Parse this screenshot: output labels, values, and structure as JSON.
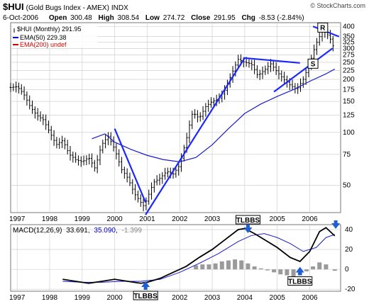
{
  "header": {
    "symbol": "$HUI",
    "name": "(Gold Bugs Index - AMEX)",
    "exchange": "INDX",
    "copyright": "© StockCharts.com",
    "date": "6-Oct-2006",
    "open_label": "Open",
    "open": "300.48",
    "high_label": "High",
    "high": "308.54",
    "low_label": "Low",
    "low": "274.72",
    "close_label": "Close",
    "close": "291.95",
    "chg_label": "Chg",
    "chg": "-8.53 (-2.84%)"
  },
  "legend": [
    {
      "text": "$HUI (Monthly) 291.95",
      "color": "#000000",
      "marker": "bar"
    },
    {
      "text": "EMA(50) 229.38",
      "color": "#0000cc",
      "marker": "line"
    },
    {
      "text": "EMA(200) undef",
      "color": "#cc0000",
      "marker": "line"
    }
  ],
  "macd_legend": {
    "label": "MACD(12,26,9)",
    "macd": "33.691",
    "signal": "35.090",
    "hist": "-1.399",
    "signal_color": "#0000cc",
    "hist_color": "#888888"
  },
  "annotations": {
    "tlbbs": "TLBBS",
    "r_label": "R",
    "s_label": "S"
  },
  "colors": {
    "price": "#000000",
    "ema": "#1c1ccc",
    "trend": "#1c28ff",
    "arrow": "#1f5fd6",
    "grid": "#c8c8c8",
    "hist": "#9a9a9a",
    "signal": "#1c1ccc",
    "macd": "#000000"
  },
  "chart_data": [
    {
      "type": "line",
      "title": "$HUI (Gold Bugs Index - AMEX) INDX",
      "scale": "log",
      "x_range": [
        1996.8,
        2006.95
      ],
      "ylim": [
        35,
        420
      ],
      "y_ticks": [
        50,
        75,
        100,
        125,
        150,
        175,
        200,
        225,
        250,
        275,
        300,
        325,
        350,
        400
      ],
      "x_ticks": [
        "1997",
        "1998",
        "1999",
        "2000",
        "2001",
        "2002",
        "2003",
        "2004",
        "2005",
        "2006"
      ],
      "grid": true,
      "legend_position": "top-left",
      "series": [
        {
          "name": "$HUI (Monthly)",
          "x": [
            1996.8,
            1997.0,
            1997.2,
            1997.4,
            1997.6,
            1997.8,
            1998.0,
            1998.2,
            1998.4,
            1998.6,
            1998.8,
            1999.0,
            1999.2,
            1999.4,
            1999.6,
            1999.8,
            2000.0,
            2000.2,
            2000.4,
            2000.6,
            2000.8,
            2000.9,
            2001.0,
            2001.2,
            2001.4,
            2001.6,
            2001.8,
            2002.0,
            2002.2,
            2002.4,
            2002.6,
            2002.8,
            2003.0,
            2003.2,
            2003.4,
            2003.6,
            2003.8,
            2004.0,
            2004.2,
            2004.4,
            2004.6,
            2004.8,
            2005.0,
            2005.2,
            2005.4,
            2005.6,
            2005.8,
            2006.0,
            2006.2,
            2006.4,
            2006.6,
            2006.77
          ],
          "values": [
            180,
            182,
            165,
            140,
            125,
            118,
            100,
            85,
            90,
            75,
            70,
            68,
            72,
            62,
            85,
            95,
            80,
            62,
            55,
            45,
            40,
            38,
            42,
            52,
            55,
            60,
            58,
            65,
            90,
            130,
            120,
            140,
            150,
            155,
            175,
            215,
            260,
            250,
            245,
            210,
            225,
            245,
            220,
            200,
            185,
            175,
            200,
            245,
            320,
            380,
            350,
            292
          ]
        },
        {
          "name": "EMA(50)",
          "x": [
            1999.3,
            1999.7,
            2000.0,
            2000.5,
            2001.0,
            2001.5,
            2002.0,
            2002.5,
            2003.0,
            2003.5,
            2004.0,
            2004.5,
            2005.0,
            2005.5,
            2006.0,
            2006.5,
            2006.77
          ],
          "values": [
            92,
            98,
            88,
            80,
            74,
            70,
            68,
            72,
            85,
            105,
            128,
            145,
            160,
            175,
            195,
            215,
            229
          ]
        }
      ],
      "trendlines": [
        {
          "x": [
            2000.0,
            2000.95
          ],
          "values": [
            105,
            40
          ]
        },
        {
          "x": [
            2000.95,
            2004.0
          ],
          "values": [
            34,
            265
          ]
        },
        {
          "x": [
            2003.95,
            2005.7
          ],
          "values": [
            265,
            248
          ]
        },
        {
          "x": [
            2004.9,
            2006.7
          ],
          "values": [
            170,
            300
          ]
        },
        {
          "x": [
            2006.1,
            2006.9
          ],
          "values": [
            400,
            350
          ]
        }
      ]
    },
    {
      "type": "line",
      "title": "MACD(12,26,9)",
      "x_range": [
        1996.8,
        2006.95
      ],
      "ylim": [
        -22,
        45
      ],
      "y_ticks": [
        -20,
        0,
        20,
        40
      ],
      "x_ticks": [
        "1997",
        "1998",
        "1999",
        "2000",
        "2001",
        "2002",
        "2003",
        "2004",
        "2005",
        "2006"
      ],
      "grid": true,
      "series": [
        {
          "name": "MACD",
          "x": [
            1998.4,
            1998.8,
            1999.2,
            1999.6,
            2000.0,
            2000.4,
            2000.8,
            2001.0,
            2001.4,
            2001.8,
            2002.2,
            2002.6,
            2003.0,
            2003.4,
            2003.8,
            2004.0,
            2004.3,
            2004.6,
            2005.0,
            2005.4,
            2005.7,
            2006.0,
            2006.3,
            2006.5,
            2006.77
          ],
          "values": [
            -10,
            -12,
            -14,
            -12,
            -10,
            -12,
            -14,
            -13,
            -9,
            -3,
            3,
            12,
            20,
            30,
            40,
            41,
            36,
            30,
            22,
            12,
            8,
            18,
            38,
            42,
            33.7
          ]
        },
        {
          "name": "Signal",
          "x": [
            1998.4,
            1999.0,
            1999.6,
            2000.2,
            2000.8,
            2001.4,
            2002.0,
            2002.6,
            2003.2,
            2003.8,
            2004.2,
            2004.6,
            2005.0,
            2005.4,
            2005.8,
            2006.2,
            2006.5,
            2006.77
          ],
          "values": [
            -12,
            -13,
            -13,
            -12,
            -12,
            -10,
            -3,
            6,
            16,
            28,
            34,
            36,
            32,
            26,
            18,
            22,
            32,
            35.1
          ]
        },
        {
          "name": "Histogram",
          "x": [
            2002.5,
            2002.7,
            2002.9,
            2003.1,
            2003.3,
            2003.5,
            2003.7,
            2003.9,
            2004.1,
            2004.3,
            2004.5,
            2004.7,
            2004.9,
            2005.1,
            2005.3,
            2005.5,
            2005.7,
            2005.9,
            2006.1,
            2006.3,
            2006.5,
            2006.77
          ],
          "values": [
            4,
            5,
            5,
            6,
            8,
            9,
            10,
            9,
            6,
            3,
            1,
            -1,
            -3,
            -5,
            -6,
            -7,
            -6,
            -2,
            3,
            7,
            5,
            -1.4
          ]
        }
      ],
      "markers": [
        {
          "label": "TLBBS",
          "x": 2000.95,
          "direction": "up"
        },
        {
          "label": "TLBBS",
          "x": 2004.1,
          "direction": "down"
        },
        {
          "label": "TLBBS",
          "x": 2005.7,
          "direction": "up"
        },
        {
          "label": "",
          "x": 2006.8,
          "direction": "down"
        }
      ]
    }
  ]
}
